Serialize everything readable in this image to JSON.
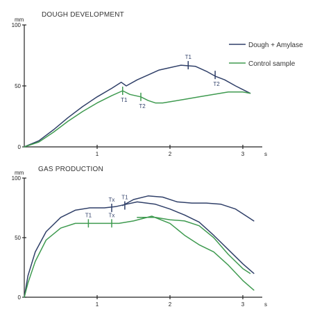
{
  "colors": {
    "dough_amylase": "#2f3f68",
    "control": "#3e9a4f",
    "axis": "#222222"
  },
  "legend": [
    {
      "series": 0,
      "label": "Dough + Amylase"
    },
    {
      "series": 1,
      "label": "Control sample"
    }
  ],
  "chart_data": [
    {
      "type": "line",
      "title": "DOUGH DEVELOPMENT",
      "ylabel": "mm",
      "xlabel": "s",
      "xlim": [
        0,
        3.3
      ],
      "ylim": [
        0,
        100
      ],
      "xticks": [
        1,
        2,
        3
      ],
      "xtick_labels": [
        "1",
        "2",
        "3"
      ],
      "yticks": [
        0,
        50,
        100
      ],
      "ytick_labels": [
        "0",
        "50",
        "100"
      ],
      "grid": false,
      "legend_position": "top-right",
      "series": [
        {
          "name": "Dough + Amylase",
          "points": [
            [
              0,
              0
            ],
            [
              0.2,
              5
            ],
            [
              0.4,
              14
            ],
            [
              0.6,
              24
            ],
            [
              0.8,
              33
            ],
            [
              1.0,
              41
            ],
            [
              1.2,
              48
            ],
            [
              1.33,
              53
            ],
            [
              1.4,
              50
            ],
            [
              1.55,
              55
            ],
            [
              1.7,
              59
            ],
            [
              1.85,
              63
            ],
            [
              2.0,
              65
            ],
            [
              2.15,
              67
            ],
            [
              2.35,
              66
            ],
            [
              2.5,
              62
            ],
            [
              2.62,
              58
            ],
            [
              2.75,
              55
            ],
            [
              2.9,
              50
            ],
            [
              3.0,
              47
            ],
            [
              3.1,
              44
            ]
          ],
          "markers": [
            {
              "label": "T1",
              "x": 2.25,
              "y": 67
            },
            {
              "label": "T2",
              "x": 2.62,
              "y": 59
            }
          ]
        },
        {
          "name": "Control sample",
          "points": [
            [
              0,
              0
            ],
            [
              0.2,
              4
            ],
            [
              0.4,
              12
            ],
            [
              0.6,
              21
            ],
            [
              0.8,
              29
            ],
            [
              1.0,
              36
            ],
            [
              1.2,
              42
            ],
            [
              1.35,
              46
            ],
            [
              1.45,
              43
            ],
            [
              1.6,
              41
            ],
            [
              1.7,
              38
            ],
            [
              1.8,
              36
            ],
            [
              1.9,
              36
            ],
            [
              2.0,
              37
            ],
            [
              2.2,
              39
            ],
            [
              2.4,
              41
            ],
            [
              2.6,
              43
            ],
            [
              2.8,
              45
            ],
            [
              3.0,
              45
            ],
            [
              3.1,
              44
            ]
          ],
          "markers": [
            {
              "label": "T1",
              "x": 1.35,
              "y": 46
            },
            {
              "label": "T2",
              "x": 1.6,
              "y": 41
            }
          ]
        }
      ]
    },
    {
      "type": "line",
      "title": "GAS PRODUCTION",
      "ylabel": "mm",
      "xlabel": "s",
      "xlim": [
        0,
        3.3
      ],
      "ylim": [
        0,
        100
      ],
      "xticks": [
        1,
        2,
        3
      ],
      "xtick_labels": [
        "1",
        "2",
        "3"
      ],
      "yticks": [
        0,
        50,
        100
      ],
      "ytick_labels": [
        "0",
        "50",
        "100"
      ],
      "grid": false,
      "series": [
        {
          "name": "Dough + Amylase",
          "points": [
            [
              0,
              0
            ],
            [
              0.05,
              18
            ],
            [
              0.15,
              38
            ],
            [
              0.3,
              55
            ],
            [
              0.5,
              67
            ],
            [
              0.7,
              73
            ],
            [
              0.9,
              75
            ],
            [
              1.1,
              75
            ],
            [
              1.25,
              76
            ],
            [
              1.4,
              78
            ],
            [
              1.55,
              80
            ],
            [
              1.8,
              78
            ],
            [
              2.0,
              74
            ],
            [
              2.2,
              69
            ],
            [
              2.4,
              63
            ],
            [
              2.6,
              52
            ],
            [
              2.8,
              40
            ],
            [
              3.0,
              28
            ],
            [
              3.15,
              20
            ]
          ],
          "markers": [
            {
              "label": "Tx",
              "x": 1.2,
              "y": 75
            },
            {
              "label": "T1",
              "x": 1.38,
              "y": 77
            }
          ]
        },
        {
          "name": "Control sample",
          "points": [
            [
              0,
              0
            ],
            [
              0.05,
              12
            ],
            [
              0.15,
              30
            ],
            [
              0.3,
              48
            ],
            [
              0.5,
              58
            ],
            [
              0.7,
              62
            ],
            [
              0.9,
              62
            ],
            [
              1.1,
              62
            ],
            [
              1.3,
              62
            ],
            [
              1.5,
              64
            ],
            [
              1.75,
              68
            ],
            [
              2.0,
              62
            ],
            [
              2.2,
              52
            ],
            [
              2.4,
              44
            ],
            [
              2.6,
              38
            ],
            [
              2.8,
              27
            ],
            [
              3.0,
              14
            ],
            [
              3.15,
              6
            ]
          ],
          "markers": [
            {
              "label": "T1",
              "x": 0.88,
              "y": 62
            },
            {
              "label": "Tx",
              "x": 1.2,
              "y": 62
            }
          ]
        },
        {
          "name": "",
          "points": [
            [
              1.35,
              77
            ],
            [
              1.5,
              82
            ],
            [
              1.7,
              85
            ],
            [
              1.9,
              84
            ],
            [
              2.1,
              80
            ],
            [
              2.3,
              79
            ],
            [
              2.5,
              79
            ],
            [
              2.7,
              78
            ],
            [
              2.9,
              74
            ],
            [
              3.05,
              68
            ],
            [
              3.15,
              64
            ]
          ]
        },
        {
          "name": "",
          "points": [
            [
              1.55,
              67
            ],
            [
              1.8,
              67
            ],
            [
              2.0,
              65
            ],
            [
              2.2,
              64
            ],
            [
              2.4,
              60
            ],
            [
              2.6,
              50
            ],
            [
              2.8,
              36
            ],
            [
              3.0,
              24
            ],
            [
              3.1,
              20
            ]
          ]
        }
      ]
    }
  ]
}
